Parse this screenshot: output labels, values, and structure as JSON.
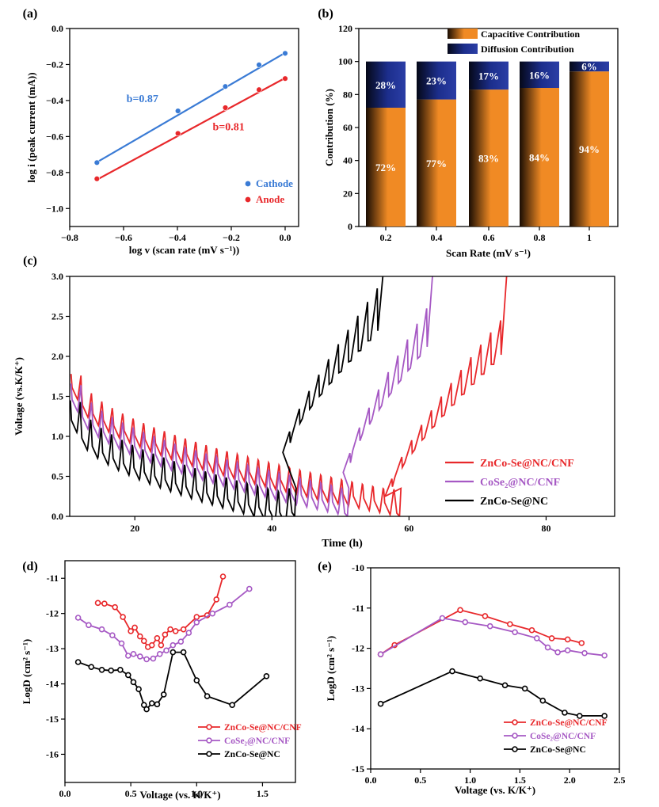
{
  "colors": {
    "red": "#e8282b",
    "blue": "#3a7bd5",
    "purple": "#a659c4",
    "black": "#000000",
    "orange": "#f08a24",
    "navy": "#1c2e8c"
  },
  "chart_data": [
    {
      "id": "a",
      "panel_label": "(a)",
      "type": "scatter",
      "xlabel": "log v (scan rate (mV s⁻¹))",
      "ylabel": "log i (peak current (mA))",
      "xlim": [
        -0.8,
        0.0
      ],
      "ylim": [
        -1.1,
        0.0
      ],
      "x_ticks": [
        "−0.8",
        "−0.6",
        "−0.4",
        "−0.2",
        "0.0"
      ],
      "y_ticks": [
        "0.0",
        "−0.2",
        "−0.4",
        "−0.6",
        "−0.8",
        "−1.0"
      ],
      "series": [
        {
          "name": "Cathode",
          "color": "blue",
          "points": [
            [
              -0.699,
              -0.745
            ],
            [
              -0.398,
              -0.458
            ],
            [
              -0.222,
              -0.322
            ],
            [
              -0.097,
              -0.202
            ],
            [
              0.0,
              -0.138
            ]
          ],
          "fit": [
            [
              -0.699,
              -0.743
            ],
            [
              0.0,
              -0.135
            ]
          ]
        },
        {
          "name": "Anode",
          "color": "red",
          "points": [
            [
              -0.699,
              -0.835
            ],
            [
              -0.398,
              -0.583
            ],
            [
              -0.222,
              -0.44
            ],
            [
              -0.097,
              -0.34
            ],
            [
              0.0,
              -0.278
            ]
          ],
          "fit": [
            [
              -0.699,
              -0.84
            ],
            [
              0.0,
              -0.275
            ]
          ]
        }
      ],
      "annotations": [
        {
          "text": "b=0.87",
          "color": "blue",
          "x": -0.53,
          "y": -0.41
        },
        {
          "text": "b=0.81",
          "color": "red",
          "x": -0.21,
          "y": -0.565
        }
      ]
    },
    {
      "id": "b",
      "panel_label": "(b)",
      "type": "bar",
      "xlabel": "Scan Rate (mV s⁻¹)",
      "ylabel": "Contribution (%)",
      "ylim": [
        0,
        120
      ],
      "y_ticks": [
        "0",
        "20",
        "40",
        "60",
        "80",
        "100",
        "120"
      ],
      "categories": [
        "0.2",
        "0.4",
        "0.6",
        "0.8",
        "1"
      ],
      "series": [
        {
          "name": "Capacitive Contribution",
          "color": "orange",
          "values": [
            72,
            77,
            83,
            84,
            94
          ],
          "labels": [
            "72%",
            "77%",
            "83%",
            "84%",
            "94%"
          ]
        },
        {
          "name": "Diffusion Contribution",
          "color": "navy",
          "values": [
            28,
            23,
            17,
            16,
            6
          ],
          "labels": [
            "28%",
            "23%",
            "17%",
            "16%",
            "6%"
          ]
        }
      ]
    },
    {
      "id": "c",
      "panel_label": "(c)",
      "type": "line",
      "xlabel": "Time (h)",
      "ylabel": "Voltage (vs.K/K⁺)",
      "xlim": [
        10.5,
        90
      ],
      "ylim": [
        0,
        3.0
      ],
      "x_ticks": [
        "20",
        "40",
        "60",
        "80"
      ],
      "y_ticks": [
        "0.0",
        "0.5",
        "1.0",
        "1.5",
        "2.0",
        "2.5",
        "3.0"
      ],
      "series": [
        {
          "name": "ZnCo-Se@NC/CNF",
          "color": "red",
          "pulses": {
            "t0": 10.7,
            "dt": 1.52,
            "n": 31,
            "v_start": 1.78,
            "v_end": 0.34,
            "drop": 0.17,
            "v_end_dis": 0.04
          },
          "charge": {
            "t0": 56.5,
            "t1": 73.8,
            "v0": 0.25,
            "v1": 1.9,
            "n": 12,
            "jump": 0.55
          }
        },
        {
          "name": "CoSe₂@NC/CNF",
          "color": "purple",
          "pulses": {
            "t0": 10.7,
            "dt": 1.52,
            "n": 26,
            "v_start": 1.66,
            "v_end": 0.38,
            "drop": 0.2,
            "v_end_dis": 0.04
          },
          "charge": {
            "t0": 50.4,
            "t1": 63.0,
            "v0": 0.55,
            "v1": 2.0,
            "n": 9,
            "jump": 0.6
          }
        },
        {
          "name": "ZnCo-Se@NC",
          "color": "black",
          "pulses": {
            "t0": 10.6,
            "dt": 1.52,
            "n": 21,
            "v_start": 1.45,
            "v_end": 0.3,
            "drop": 0.25,
            "v_end_dis": 0.05
          },
          "charge": {
            "t0": 41.6,
            "t1": 55.8,
            "v0": 0.8,
            "v1": 2.2,
            "n": 10,
            "jump": 0.65
          }
        }
      ]
    },
    {
      "id": "d",
      "panel_label": "(d)",
      "type": "line",
      "xlabel": "Voltage (vs. K/K⁺)",
      "ylabel": "LogD (cm² s⁻¹)",
      "xlim": [
        0,
        1.75
      ],
      "ylim": [
        -16.8,
        -10.5
      ],
      "x_ticks": [
        "0.0",
        "0.5",
        "1.0",
        "1.5"
      ],
      "y_ticks": [
        "-11",
        "-12",
        "-13",
        "-14",
        "-15",
        "-16"
      ],
      "series": [
        {
          "name": "ZnCo-Se@NC/CNF",
          "color": "red",
          "points": [
            [
              0.25,
              -11.7
            ],
            [
              0.3,
              -11.72
            ],
            [
              0.38,
              -11.82
            ],
            [
              0.44,
              -12.1
            ],
            [
              0.5,
              -12.5
            ],
            [
              0.53,
              -12.4
            ],
            [
              0.57,
              -12.65
            ],
            [
              0.6,
              -12.78
            ],
            [
              0.63,
              -12.95
            ],
            [
              0.66,
              -12.9
            ],
            [
              0.7,
              -12.7
            ],
            [
              0.73,
              -12.9
            ],
            [
              0.76,
              -12.6
            ],
            [
              0.8,
              -12.45
            ],
            [
              0.84,
              -12.5
            ],
            [
              0.9,
              -12.45
            ],
            [
              1.0,
              -12.1
            ],
            [
              1.08,
              -12.05
            ],
            [
              1.15,
              -11.6
            ],
            [
              1.2,
              -10.95
            ]
          ]
        },
        {
          "name": "CoSe₂@NC/CNF",
          "color": "purple",
          "points": [
            [
              0.1,
              -12.12
            ],
            [
              0.18,
              -12.33
            ],
            [
              0.28,
              -12.45
            ],
            [
              0.36,
              -12.62
            ],
            [
              0.43,
              -12.85
            ],
            [
              0.48,
              -13.2
            ],
            [
              0.52,
              -13.15
            ],
            [
              0.57,
              -13.22
            ],
            [
              0.62,
              -13.3
            ],
            [
              0.67,
              -13.28
            ],
            [
              0.72,
              -13.15
            ],
            [
              0.77,
              -13.05
            ],
            [
              0.82,
              -12.9
            ],
            [
              0.88,
              -12.8
            ],
            [
              0.94,
              -12.55
            ],
            [
              1.0,
              -12.25
            ],
            [
              1.12,
              -12.0
            ],
            [
              1.25,
              -11.75
            ],
            [
              1.4,
              -11.3
            ]
          ]
        },
        {
          "name": "ZnCo-Se@NC",
          "color": "black",
          "points": [
            [
              0.1,
              -13.38
            ],
            [
              0.2,
              -13.52
            ],
            [
              0.28,
              -13.6
            ],
            [
              0.35,
              -13.62
            ],
            [
              0.42,
              -13.6
            ],
            [
              0.48,
              -13.75
            ],
            [
              0.52,
              -13.95
            ],
            [
              0.56,
              -14.15
            ],
            [
              0.6,
              -14.6
            ],
            [
              0.62,
              -14.72
            ],
            [
              0.66,
              -14.55
            ],
            [
              0.7,
              -14.58
            ],
            [
              0.75,
              -14.3
            ],
            [
              0.82,
              -13.1
            ],
            [
              0.9,
              -13.1
            ],
            [
              1.0,
              -13.9
            ],
            [
              1.08,
              -14.35
            ],
            [
              1.27,
              -14.6
            ],
            [
              1.53,
              -13.78
            ]
          ]
        }
      ]
    },
    {
      "id": "e",
      "panel_label": "(e)",
      "type": "line",
      "xlabel": "Voltage (vs. K/K⁺)",
      "ylabel": "LogD (cm² s⁻¹)",
      "xlim": [
        0,
        2.5
      ],
      "ylim": [
        -15,
        -10
      ],
      "x_ticks": [
        "0.0",
        "0.5",
        "1.0",
        "1.5",
        "2.0",
        "2.5"
      ],
      "y_ticks": [
        "-10",
        "-11",
        "-12",
        "-13",
        "-14",
        "-15"
      ],
      "series": [
        {
          "name": "ZnCo-Se@NC/CNF",
          "color": "red",
          "points": [
            [
              0.1,
              -12.15
            ],
            [
              0.24,
              -11.92
            ],
            [
              0.9,
              -11.05
            ],
            [
              1.15,
              -11.2
            ],
            [
              1.4,
              -11.4
            ],
            [
              1.62,
              -11.55
            ],
            [
              1.82,
              -11.75
            ],
            [
              1.98,
              -11.78
            ],
            [
              2.12,
              -11.87
            ]
          ]
        },
        {
          "name": "CoSe₂@NC/CNF",
          "color": "purple",
          "points": [
            [
              0.1,
              -12.15
            ],
            [
              0.72,
              -11.25
            ],
            [
              0.95,
              -11.35
            ],
            [
              1.2,
              -11.45
            ],
            [
              1.45,
              -11.6
            ],
            [
              1.67,
              -11.75
            ],
            [
              1.78,
              -11.98
            ],
            [
              1.88,
              -12.1
            ],
            [
              1.98,
              -12.05
            ],
            [
              2.15,
              -12.12
            ],
            [
              2.35,
              -12.18
            ]
          ]
        },
        {
          "name": "ZnCo-Se@NC",
          "color": "black",
          "points": [
            [
              0.1,
              -13.38
            ],
            [
              0.82,
              -12.57
            ],
            [
              1.1,
              -12.75
            ],
            [
              1.35,
              -12.92
            ],
            [
              1.55,
              -13.0
            ],
            [
              1.73,
              -13.3
            ],
            [
              1.95,
              -13.6
            ],
            [
              2.1,
              -13.68
            ],
            [
              2.35,
              -13.68
            ]
          ]
        }
      ]
    }
  ]
}
